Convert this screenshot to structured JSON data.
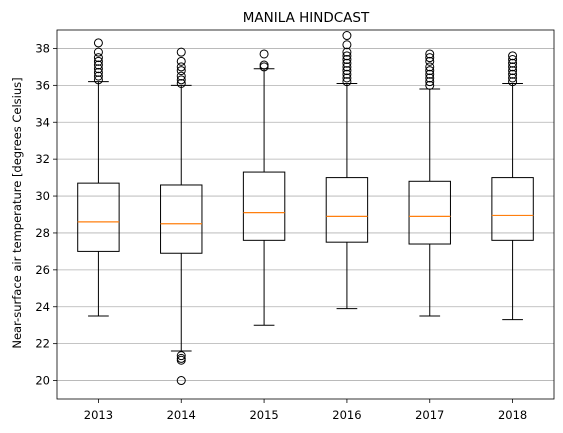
{
  "chart_data": {
    "type": "box",
    "title": "MANILA HINDCAST",
    "xlabel": "",
    "ylabel": "Near-surface air temperature [degrees Celsius]",
    "ylim": [
      19.0,
      39.0
    ],
    "yticks": [
      20,
      22,
      24,
      26,
      28,
      30,
      32,
      34,
      36,
      38
    ],
    "grid": "horizontal",
    "colors": {
      "box": "#000000",
      "median": "#ff7f0e",
      "grid": "#b0b0b0"
    },
    "categories": [
      "2013",
      "2014",
      "2015",
      "2016",
      "2017",
      "2018"
    ],
    "boxes": [
      {
        "category": "2013",
        "whisker_low": 23.5,
        "q1": 27.0,
        "median": 28.6,
        "q3": 30.7,
        "whisker_high": 36.2,
        "outliers": [
          36.3,
          36.5,
          36.7,
          36.9,
          37.1,
          37.3,
          37.5,
          37.8,
          38.3
        ]
      },
      {
        "category": "2014",
        "whisker_low": 21.6,
        "q1": 26.9,
        "median": 28.5,
        "q3": 30.6,
        "whisker_high": 36.0,
        "outliers": [
          20.0,
          21.1,
          21.2,
          21.35,
          36.1,
          36.3,
          36.5,
          36.8,
          37.0,
          37.3,
          37.8
        ]
      },
      {
        "category": "2015",
        "whisker_low": 23.0,
        "q1": 27.6,
        "median": 29.1,
        "q3": 31.3,
        "whisker_high": 36.9,
        "outliers": [
          37.0,
          37.1,
          37.7
        ]
      },
      {
        "category": "2016",
        "whisker_low": 23.9,
        "q1": 27.5,
        "median": 28.9,
        "q3": 31.0,
        "whisker_high": 36.1,
        "outliers": [
          36.2,
          36.4,
          36.6,
          36.8,
          37.0,
          37.2,
          37.4,
          37.6,
          37.8,
          38.2,
          38.7
        ]
      },
      {
        "category": "2017",
        "whisker_low": 23.5,
        "q1": 27.4,
        "median": 28.9,
        "q3": 30.8,
        "whisker_high": 35.8,
        "outliers": [
          36.0,
          36.2,
          36.4,
          36.6,
          36.8,
          37.0,
          37.3,
          37.5,
          37.7
        ]
      },
      {
        "category": "2018",
        "whisker_low": 23.3,
        "q1": 27.6,
        "median": 28.95,
        "q3": 31.0,
        "whisker_high": 36.1,
        "outliers": [
          36.2,
          36.4,
          36.6,
          36.8,
          37.0,
          37.2,
          37.4,
          37.6
        ]
      }
    ]
  }
}
